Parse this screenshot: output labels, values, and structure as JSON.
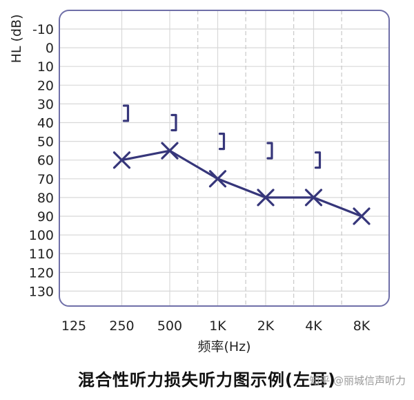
{
  "chart_data": {
    "type": "line",
    "title": "",
    "xlabel": "频率(Hz)",
    "ylabel": "HL (dB)",
    "x_ticks": [
      "125",
      "250",
      "500",
      "1K",
      "2K",
      "4K",
      "8K"
    ],
    "y_ticks": [
      -10,
      0,
      10,
      20,
      30,
      40,
      50,
      60,
      70,
      80,
      90,
      100,
      110,
      120,
      130
    ],
    "ylim": [
      -20,
      140
    ],
    "y_inverted": true,
    "grid": true,
    "series": [
      {
        "marker": "x",
        "x": [
          "250",
          "500",
          "1K",
          "2K",
          "4K",
          "8K"
        ],
        "values": [
          60,
          55,
          70,
          80,
          80,
          90
        ]
      }
    ],
    "bone_conduction": {
      "marker": "]",
      "x": [
        250,
        500,
        1000,
        2000,
        4000
      ],
      "values": [
        35,
        40,
        50,
        55,
        60
      ]
    }
  },
  "colors": {
    "line": "#36367a",
    "frame": "#6f6fa8",
    "grid": "#d8d8d8"
  },
  "caption": "混合性听力损失听力图示例(左耳)",
  "watermark": "知乎 @丽城信声听力"
}
